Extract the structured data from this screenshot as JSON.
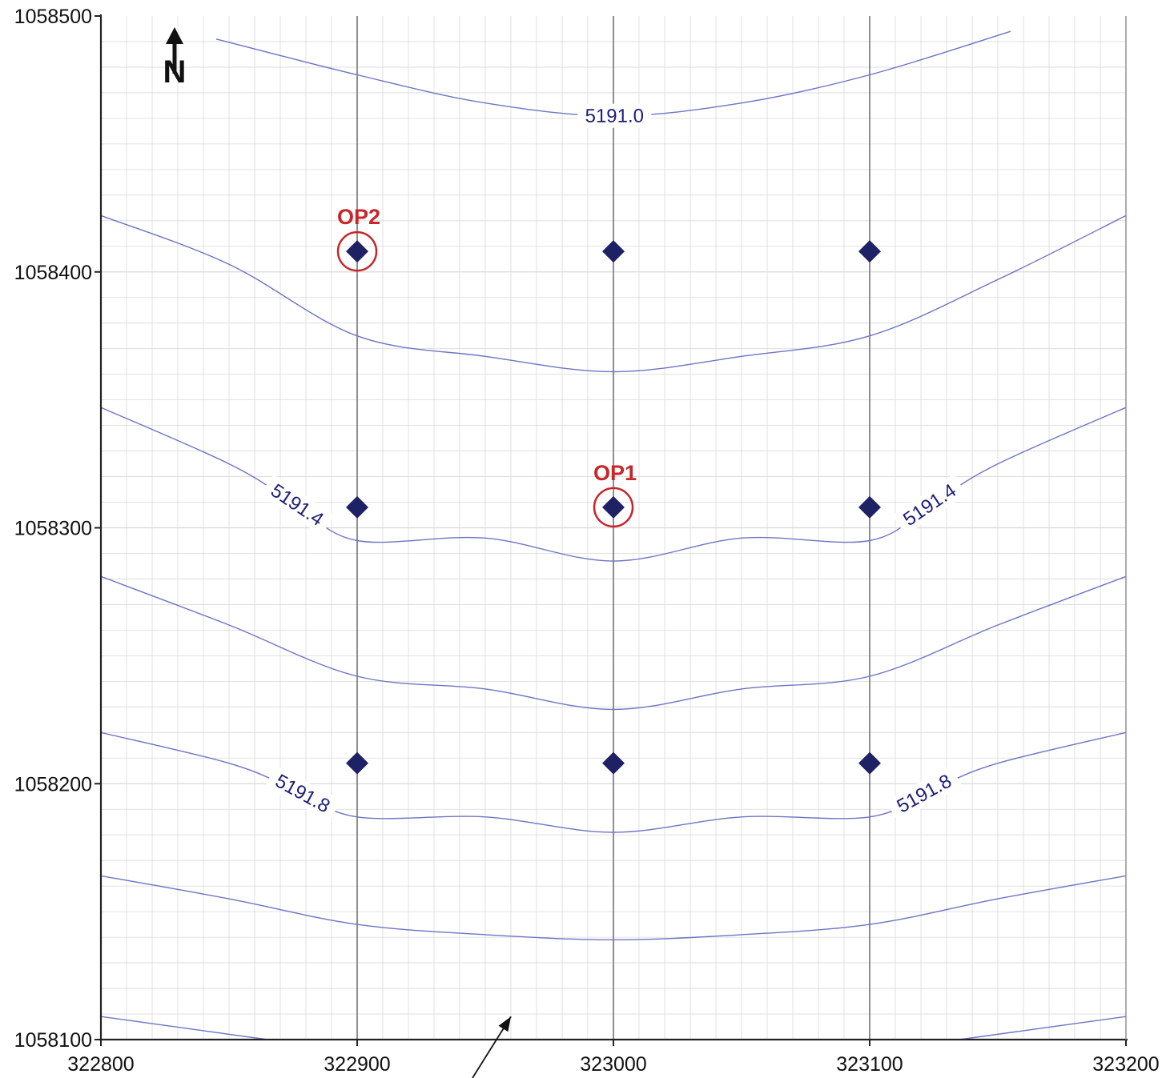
{
  "chart_data": {
    "type": "contour-map",
    "xlim": [
      322800,
      323200
    ],
    "ylim": [
      1058100,
      1058500
    ],
    "x_ticks": [
      "322800",
      "322900",
      "323000",
      "323100",
      "323200"
    ],
    "y_ticks": [
      "1058500",
      "1058400",
      "1058300",
      "1058200",
      "1058100"
    ],
    "grid": true,
    "north_arrow": {
      "letter": "N"
    },
    "transects_x": [
      322900,
      323000,
      323100
    ],
    "contours": [
      {
        "level": 5191.0,
        "label": "5191.0",
        "label_count": 1,
        "points": [
          [
            322845,
            1058491
          ],
          [
            322900,
            1058477
          ],
          [
            322950,
            1058466
          ],
          [
            323000,
            1058461
          ],
          [
            323050,
            1058466
          ],
          [
            323100,
            1058477
          ],
          [
            323155,
            1058494
          ]
        ]
      },
      {
        "level": 5191.2,
        "label": "",
        "label_count": 0,
        "points": [
          [
            322800,
            1058422
          ],
          [
            322850,
            1058403
          ],
          [
            322900,
            1058375
          ],
          [
            322950,
            1058367
          ],
          [
            323000,
            1058361
          ],
          [
            323050,
            1058367
          ],
          [
            323100,
            1058375
          ],
          [
            323150,
            1058397
          ],
          [
            323200,
            1058422
          ]
        ]
      },
      {
        "level": 5191.4,
        "label": "5191.4",
        "label_count": 2,
        "points": [
          [
            322800,
            1058347
          ],
          [
            322850,
            1058325
          ],
          [
            322875,
            1058310
          ],
          [
            322900,
            1058295
          ],
          [
            322950,
            1058296
          ],
          [
            323000,
            1058287
          ],
          [
            323050,
            1058296
          ],
          [
            323100,
            1058295
          ],
          [
            323125,
            1058310
          ],
          [
            323150,
            1058325
          ],
          [
            323200,
            1058347
          ]
        ]
      },
      {
        "level": 5191.6,
        "label": "",
        "label_count": 0,
        "points": [
          [
            322800,
            1058281
          ],
          [
            322850,
            1058262
          ],
          [
            322900,
            1058242
          ],
          [
            322950,
            1058237
          ],
          [
            323000,
            1058229
          ],
          [
            323050,
            1058237
          ],
          [
            323100,
            1058242
          ],
          [
            323150,
            1058262
          ],
          [
            323200,
            1058281
          ]
        ]
      },
      {
        "level": 5191.8,
        "label": "5191.8",
        "label_count": 2,
        "points": [
          [
            322800,
            1058220
          ],
          [
            322850,
            1058208
          ],
          [
            322875,
            1058198
          ],
          [
            322900,
            1058187
          ],
          [
            322950,
            1058187
          ],
          [
            323000,
            1058181
          ],
          [
            323050,
            1058187
          ],
          [
            323100,
            1058187
          ],
          [
            323125,
            1058198
          ],
          [
            323150,
            1058208
          ],
          [
            323200,
            1058220
          ]
        ]
      },
      {
        "level": 5192.0,
        "label": "",
        "label_count": 0,
        "points": [
          [
            322800,
            1058164
          ],
          [
            322850,
            1058155
          ],
          [
            322900,
            1058145
          ],
          [
            322950,
            1058141
          ],
          [
            323000,
            1058139
          ],
          [
            323050,
            1058141
          ],
          [
            323100,
            1058145
          ],
          [
            323150,
            1058155
          ],
          [
            323200,
            1058164
          ]
        ]
      },
      {
        "level": 5192.2,
        "label": "",
        "label_count": 0,
        "points": [
          [
            322800,
            1058109
          ],
          [
            322865,
            1058100
          ]
        ]
      },
      {
        "level": 5192.2,
        "label": "",
        "label_count": 0,
        "points": [
          [
            323135,
            1058100
          ],
          [
            323200,
            1058109
          ]
        ]
      }
    ],
    "stations": [
      {
        "x": 322900,
        "y": 1058408,
        "label": "OP2",
        "highlighted": true
      },
      {
        "x": 323000,
        "y": 1058408,
        "label": "",
        "highlighted": false
      },
      {
        "x": 323100,
        "y": 1058408,
        "label": "",
        "highlighted": false
      },
      {
        "x": 322900,
        "y": 1058308,
        "label": "",
        "highlighted": false
      },
      {
        "x": 323000,
        "y": 1058308,
        "label": "OP1",
        "highlighted": true
      },
      {
        "x": 323100,
        "y": 1058308,
        "label": "",
        "highlighted": false
      },
      {
        "x": 322900,
        "y": 1058208,
        "label": "",
        "highlighted": false
      },
      {
        "x": 323000,
        "y": 1058208,
        "label": "",
        "highlighted": false
      },
      {
        "x": 323100,
        "y": 1058208,
        "label": "",
        "highlighted": false
      }
    ],
    "flow_arrow": {
      "from": [
        322945,
        1058085
      ],
      "to": [
        322960,
        1058109
      ]
    },
    "colors": {
      "contour": "#6d74c4",
      "contour_label": "#1d1f78",
      "station": "#1e2163",
      "highlight": "#c7262a",
      "grid": "#d9d9d9",
      "transect": "#555566",
      "axis": "#222222"
    }
  }
}
